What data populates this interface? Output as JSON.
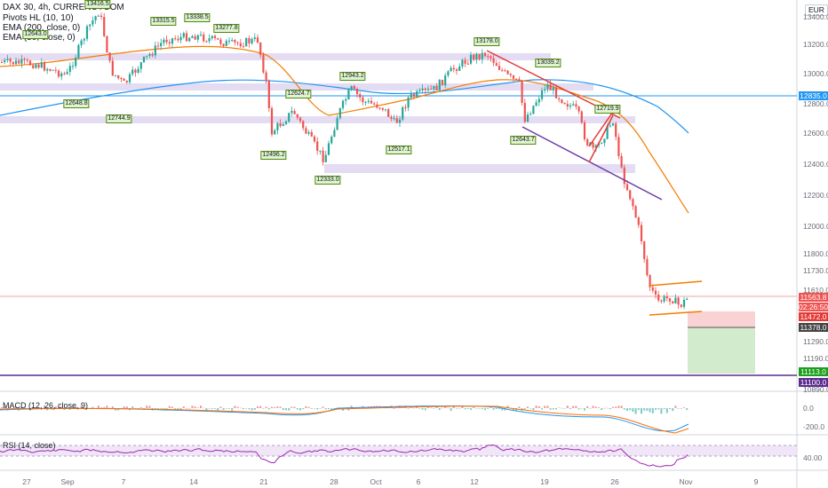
{
  "legend": {
    "symbol": "DAX 30, 4h, CURRENCYCOM",
    "pivots": "Pivots HL (10, 10)",
    "ema200": "EMA (200, close, 0)",
    "ema50": "EMA (50, close, 0)"
  },
  "currency_button": "EUR",
  "price_axis": [
    "13400.0",
    "13200.0",
    "13000.0",
    "12800.0",
    "12600.0",
    "12400.0",
    "12200.0",
    "12000.0",
    "11800.0",
    "11730.0",
    "11610.0",
    "11290.0",
    "11190.0",
    "10890.0"
  ],
  "price_tags": {
    "ema200": "12835.0",
    "current": "11563.8",
    "countdown": "02:26:50",
    "stop": "11472.0",
    "entry": "11378.0",
    "target": "11113.0",
    "support": "11100.0"
  },
  "pivot_labels": [
    "12648.8",
    "13416.5",
    "13315.5",
    "13338.5",
    "13277.8",
    "12643.0",
    "12744.9",
    "12496.2",
    "12624.7",
    "12943.2",
    "12333.0",
    "12517.1",
    "13178.0",
    "13039.2",
    "12643.7",
    "12719.9"
  ],
  "x_axis": [
    "27",
    "Sep",
    "7",
    "14",
    "21",
    "28",
    "Oct",
    "6",
    "12",
    "19",
    "26",
    "Nov",
    "9"
  ],
  "macd": {
    "label": "MACD (12, 26, close, 9)",
    "ticks": [
      "0.0",
      "-200.0"
    ]
  },
  "rsi": {
    "label": "RSI (14, close)",
    "ticks": [
      "40.00"
    ]
  },
  "colors": {
    "up": "#26a69a",
    "down": "#ef5350",
    "ema200": "#2196f3",
    "ema50": "#f57c00",
    "zone": "#d1c4e9",
    "trend_red": "#e53935",
    "trend_purple": "#6a3aa6",
    "support_line": "#5b2c8f",
    "stop_zone": "#f8c8c8",
    "target_zone": "#c8e6c0",
    "rsi": "#9c27b0",
    "macd_line": "#2196f3",
    "signal_line": "#ff6d00"
  }
}
